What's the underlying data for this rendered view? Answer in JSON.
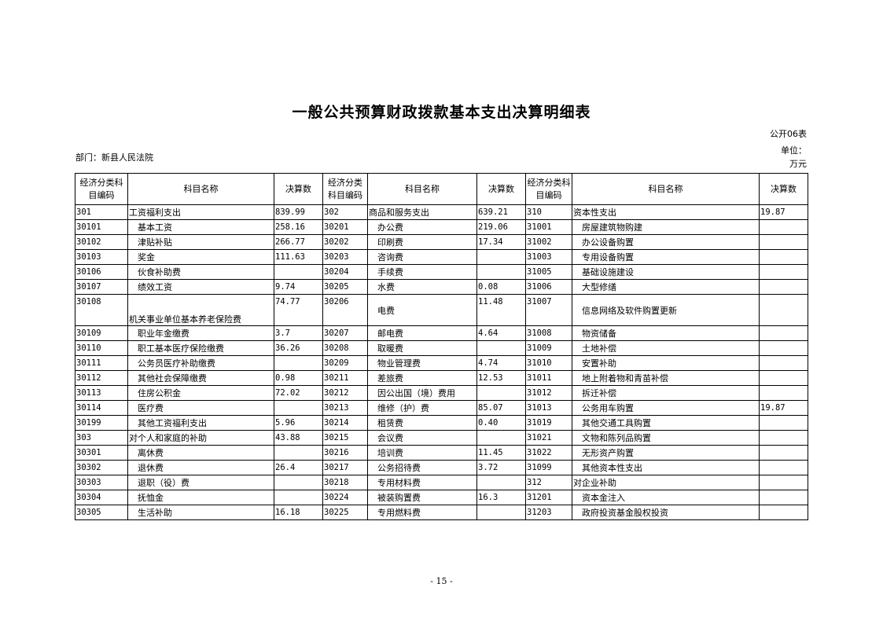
{
  "title": "一般公共预算财政拨款基本支出决算明细表",
  "table_no": "公开06表",
  "unit": "单位：万元",
  "department": "部门：新县人民法院",
  "headers": {
    "code": "经济分类科目编码",
    "name": "科目名称",
    "amount": "决算数"
  },
  "rows": [
    [
      [
        "301",
        "工资福利支出",
        "839.99",
        0
      ],
      [
        "302",
        "商品和服务支出",
        "639.21",
        0
      ],
      [
        "310",
        "资本性支出",
        "19.87",
        0
      ]
    ],
    [
      [
        "30101",
        "基本工资",
        "258.16",
        1
      ],
      [
        "30201",
        "办公费",
        "219.06",
        1
      ],
      [
        "31001",
        "房屋建筑物购建",
        "",
        1
      ]
    ],
    [
      [
        "30102",
        "津贴补贴",
        "266.77",
        1
      ],
      [
        "30202",
        "印刷费",
        "17.34",
        1
      ],
      [
        "31002",
        "办公设备购置",
        "",
        1
      ]
    ],
    [
      [
        "30103",
        "奖金",
        "111.63",
        1
      ],
      [
        "30203",
        "咨询费",
        "",
        1
      ],
      [
        "31003",
        "专用设备购置",
        "",
        1
      ]
    ],
    [
      [
        "30106",
        "伙食补助费",
        "",
        1
      ],
      [
        "30204",
        "手续费",
        "",
        1
      ],
      [
        "31005",
        "基础设施建设",
        "",
        1
      ]
    ],
    [
      [
        "30107",
        "绩效工资",
        "9.74",
        1
      ],
      [
        "30205",
        "水费",
        "0.08",
        1
      ],
      [
        "31006",
        "大型修缮",
        "",
        1
      ]
    ],
    [
      [
        "30108",
        "机关事业单位基本养老保险费",
        "74.77",
        0
      ],
      [
        "30206",
        "电费",
        "11.48",
        1
      ],
      [
        "31007",
        "信息网络及软件购置更新",
        "",
        1
      ]
    ],
    [
      [
        "30109",
        "职业年金缴费",
        "3.7",
        1
      ],
      [
        "30207",
        "邮电费",
        "4.64",
        1
      ],
      [
        "31008",
        "物资储备",
        "",
        1
      ]
    ],
    [
      [
        "30110",
        "职工基本医疗保险缴费",
        "36.26",
        1
      ],
      [
        "30208",
        "取暖费",
        "",
        1
      ],
      [
        "31009",
        "土地补偿",
        "",
        1
      ]
    ],
    [
      [
        "30111",
        "公务员医疗补助缴费",
        "",
        1
      ],
      [
        "30209",
        "物业管理费",
        "4.74",
        1
      ],
      [
        "31010",
        "安置补助",
        "",
        1
      ]
    ],
    [
      [
        "30112",
        "其他社会保障缴费",
        "0.98",
        1
      ],
      [
        "30211",
        "差旅费",
        "12.53",
        1
      ],
      [
        "31011",
        "地上附着物和青苗补偿",
        "",
        1
      ]
    ],
    [
      [
        "30113",
        "住房公积金",
        "72.02",
        1
      ],
      [
        "30212",
        "因公出国（境）费用",
        "",
        1
      ],
      [
        "31012",
        "拆迁补偿",
        "",
        1
      ]
    ],
    [
      [
        "30114",
        "医疗费",
        "",
        1
      ],
      [
        "30213",
        "维修（护）费",
        "85.07",
        1
      ],
      [
        "31013",
        "公务用车购置",
        "19.87",
        1
      ]
    ],
    [
      [
        "30199",
        "其他工资福利支出",
        "5.96",
        1
      ],
      [
        "30214",
        "租赁费",
        "0.40",
        1
      ],
      [
        "31019",
        "其他交通工具购置",
        "",
        1
      ]
    ],
    [
      [
        "303",
        "对个人和家庭的补助",
        "43.88",
        0
      ],
      [
        "30215",
        "会议费",
        "",
        1
      ],
      [
        "31021",
        "文物和陈列品购置",
        "",
        1
      ]
    ],
    [
      [
        "30301",
        "离休费",
        "",
        1
      ],
      [
        "30216",
        "培训费",
        "11.45",
        1
      ],
      [
        "31022",
        "无形资产购置",
        "",
        1
      ]
    ],
    [
      [
        "30302",
        "退休费",
        "26.4",
        1
      ],
      [
        "30217",
        "公务招待费",
        "3.72",
        1
      ],
      [
        "31099",
        "其他资本性支出",
        "",
        1
      ]
    ],
    [
      [
        "30303",
        "退职（役）费",
        "",
        1
      ],
      [
        "30218",
        "专用材料费",
        "",
        1
      ],
      [
        "312",
        "对企业补助",
        "",
        0
      ]
    ],
    [
      [
        "30304",
        "抚恤金",
        "",
        1
      ],
      [
        "30224",
        "被装购置费",
        "16.3",
        1
      ],
      [
        "31201",
        "资本金注入",
        "",
        1
      ]
    ],
    [
      [
        "30305",
        "生活补助",
        "16.18",
        1
      ],
      [
        "30225",
        "专用燃料费",
        "",
        1
      ],
      [
        "31203",
        "政府投资基金股权投资",
        "",
        1
      ]
    ]
  ],
  "page_number": "- 15 -"
}
